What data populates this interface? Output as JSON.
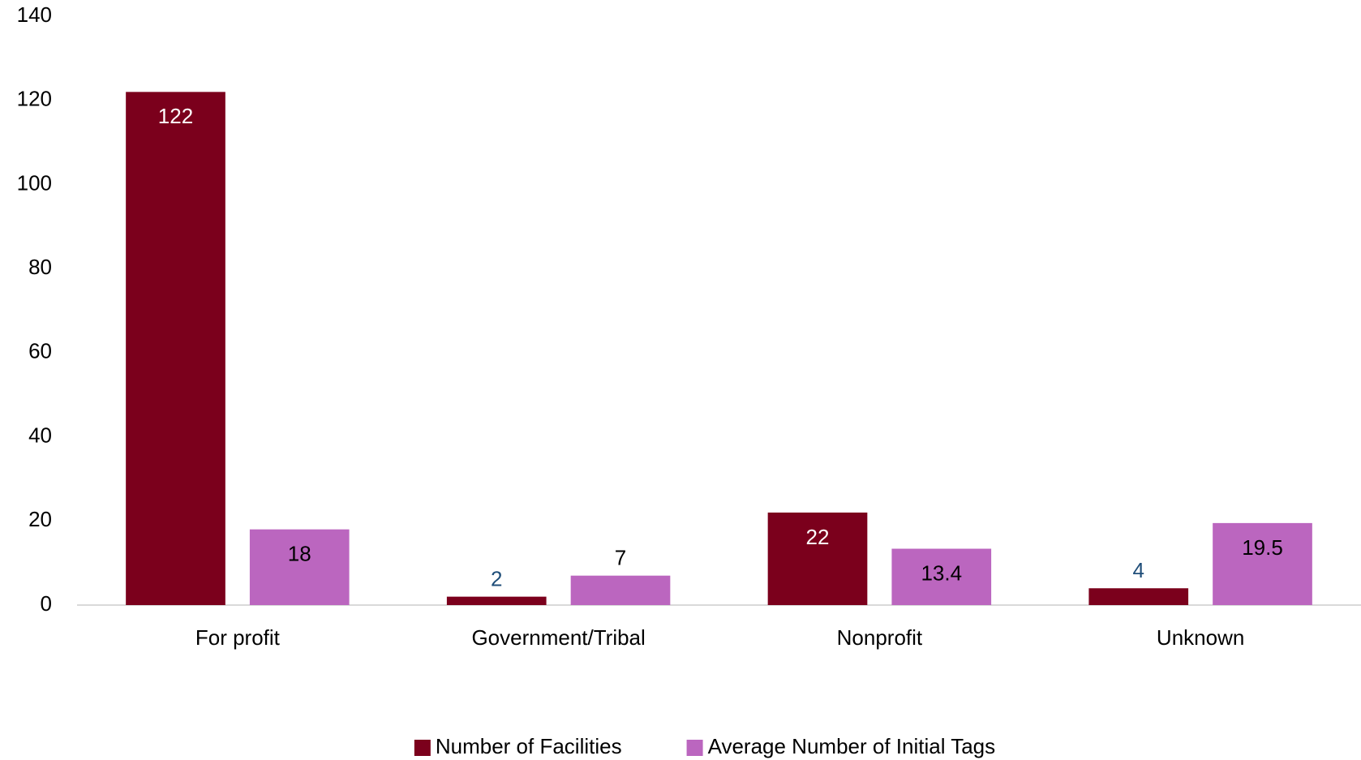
{
  "chart_data": {
    "type": "bar",
    "categories": [
      "For profit",
      "Government/Tribal",
      "Nonprofit",
      "Unknown"
    ],
    "series": [
      {
        "name": "Number of Facilities",
        "color": "#7b001c",
        "values": [
          122,
          2,
          22,
          4
        ]
      },
      {
        "name": "Average Number of Initial Tags",
        "color": "#bb66bf",
        "values": [
          18,
          7,
          13.4,
          19.5
        ]
      }
    ],
    "ylim": [
      0,
      140
    ],
    "yticks": [
      0,
      20,
      40,
      60,
      80,
      100,
      120,
      140
    ],
    "grid": false,
    "legend": "bottom"
  }
}
